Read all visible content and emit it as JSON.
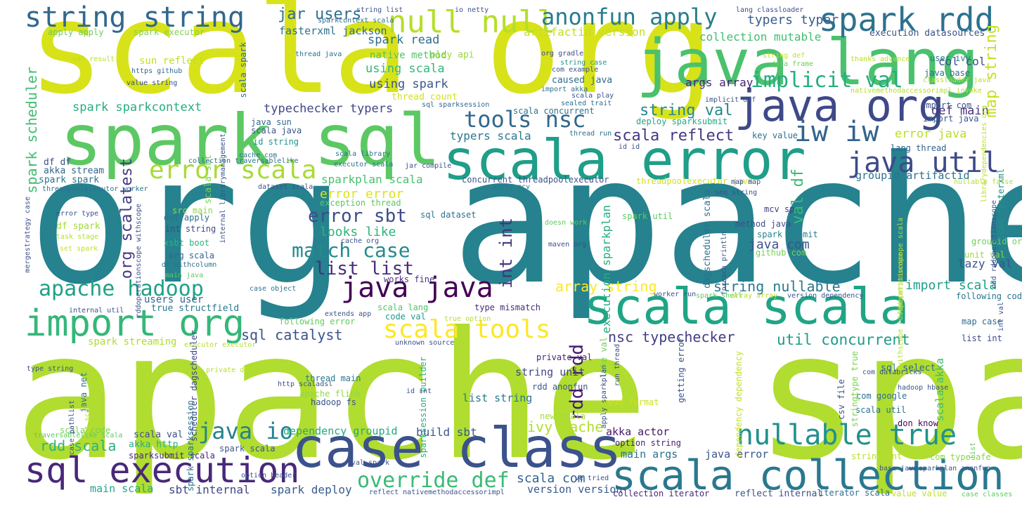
{
  "words": [
    {
      "text": "org apache",
      "color": "#25828e"
    },
    {
      "text": "apache spark",
      "color": "#b0dd2f"
    },
    {
      "text": "scala org",
      "color": "#d8e219"
    },
    {
      "text": "spark sql",
      "color": "#5cc863"
    },
    {
      "text": "java lang",
      "color": "#4ac16d"
    },
    {
      "text": "scala error",
      "color": "#1f9e89"
    },
    {
      "text": "case class",
      "color": "#3b528b"
    },
    {
      "text": "scala scala",
      "color": "#20a486"
    },
    {
      "text": "java org",
      "color": "#3e4989"
    },
    {
      "text": "scala collection",
      "color": "#2a788e"
    },
    {
      "text": "sql execution",
      "color": "#482878"
    },
    {
      "text": "import org",
      "color": "#35b779"
    },
    {
      "text": "string string",
      "color": "#31688e"
    },
    {
      "text": "spark rdd",
      "color": "#2c728e"
    },
    {
      "text": "null null",
      "color": "#b5de2b"
    },
    {
      "text": "anonfun apply",
      "color": "#287d8e"
    },
    {
      "text": "java util",
      "color": "#3e4a89"
    },
    {
      "text": "nullable true",
      "color": "#21918c"
    },
    {
      "text": "error scala",
      "color": "#a8db34"
    },
    {
      "text": "scala tools",
      "color": "#fde725"
    },
    {
      "text": "java java",
      "color": "#440154"
    },
    {
      "text": "tools nsc",
      "color": "#31688e"
    },
    {
      "text": "iw iw",
      "color": "#33638d"
    },
    {
      "text": "apache hadoop",
      "color": "#1fa187"
    },
    {
      "text": "override def",
      "color": "#3aba76"
    },
    {
      "text": "java io",
      "color": "#26828e"
    },
    {
      "text": "implicit val",
      "color": "#27ad81"
    },
    {
      "text": "match case",
      "color": "#238a8d"
    },
    {
      "text": "error sbt",
      "color": "#3e4c8a"
    },
    {
      "text": "list list",
      "color": "#472f7d"
    },
    {
      "text": "string val",
      "color": "#23898e"
    },
    {
      "text": "scala reflect",
      "color": "#443983"
    },
    {
      "text": "jar users",
      "color": "#2e6e8e"
    },
    {
      "text": "typers typer",
      "color": "#365d8d"
    },
    {
      "text": "artifactid version",
      "color": "#c2df23"
    },
    {
      "text": "collection mutable",
      "color": "#42be71"
    },
    {
      "text": "execution datasources",
      "color": "#3b528b"
    },
    {
      "text": "fasterxml jackson",
      "color": "#2d708e"
    },
    {
      "text": "spark read",
      "color": "#2e6e8e"
    },
    {
      "text": "native method",
      "color": "#52c569"
    },
    {
      "text": "using scala",
      "color": "#34b679"
    },
    {
      "text": "using spark",
      "color": "#39568c"
    },
    {
      "text": "spark sparkcontext",
      "color": "#26ad81"
    },
    {
      "text": "typechecker typers",
      "color": "#3f4788"
    },
    {
      "text": "typers scala",
      "color": "#2a778e"
    },
    {
      "text": "sparkplan scala",
      "color": "#48c16e"
    },
    {
      "text": "error error",
      "color": "#dde318"
    },
    {
      "text": "looks like",
      "color": "#2fb47c"
    },
    {
      "text": "array string",
      "color": "#fde725"
    },
    {
      "text": "string nullable",
      "color": "#2a788e"
    },
    {
      "text": "import scala",
      "color": "#1f9e89"
    },
    {
      "text": "util concurrent",
      "color": "#1e9b8a"
    },
    {
      "text": "nsc typechecker",
      "color": "#433e85"
    },
    {
      "text": "sql catalyst",
      "color": "#3b528b"
    },
    {
      "text": "spark streaming",
      "color": "#addc30"
    },
    {
      "text": "java com",
      "color": "#3a548c"
    },
    {
      "text": "col col",
      "color": "#3c4f8a"
    },
    {
      "text": "def main",
      "color": "#46327e"
    },
    {
      "text": "args array",
      "color": "#482374"
    },
    {
      "text": "error java",
      "color": "#bade28"
    },
    {
      "text": "groupid artifactid",
      "color": "#2c728e"
    },
    {
      "text": "map string",
      "color": "#c8e020"
    },
    {
      "text": "val df",
      "color": "#3aba76"
    },
    {
      "text": "int int",
      "color": "#46337f"
    },
    {
      "text": "rdd rdd",
      "color": "#481a6c"
    },
    {
      "text": "org scalatest",
      "color": "#443983"
    },
    {
      "text": "spark scheduler",
      "color": "#40bd72"
    },
    {
      "text": "ivy cache",
      "color": "#b0dd2f"
    },
    {
      "text": "build sbt",
      "color": "#38588c"
    },
    {
      "text": "dependency groupid",
      "color": "#22a884"
    },
    {
      "text": "rdd scala",
      "color": "#2eb37c"
    },
    {
      "text": "main scala",
      "color": "#21a685"
    },
    {
      "text": "sbt internal",
      "color": "#3f4788"
    },
    {
      "text": "spark deploy",
      "color": "#375a8c"
    },
    {
      "text": "scala com",
      "color": "#34618d"
    },
    {
      "text": "version version",
      "color": "#37598c"
    },
    {
      "text": "main args",
      "color": "#2c718e"
    },
    {
      "text": "java error",
      "color": "#3b528b"
    },
    {
      "text": "akka actor",
      "color": "#481769"
    },
    {
      "text": "list string",
      "color": "#2a788e"
    },
    {
      "text": "string unit",
      "color": "#404688"
    },
    {
      "text": "users user",
      "color": "#32648e"
    },
    {
      "text": "execution sparkplan",
      "color": "#27ad81"
    },
    {
      "text": "sql dataset",
      "color": "#2c738e"
    },
    {
      "text": "lazy val",
      "color": "#3b528b"
    },
    {
      "text": "scala akka",
      "color": "#3fbc73"
    },
    {
      "text": "mcv sp",
      "color": "#443b84"
    },
    {
      "text": "spark submit",
      "color": "#26828e"
    },
    {
      "text": "caused java",
      "color": "#2f6b8e"
    },
    {
      "text": "deploy sparksubmit",
      "color": "#22a785"
    },
    {
      "text": "key value",
      "color": "#2d708e"
    },
    {
      "text": "scala concurrent",
      "color": "#2b758e"
    },
    {
      "text": "thread count",
      "color": "#d2e21b"
    },
    {
      "text": "play api",
      "color": "#9bd93c"
    },
    {
      "text": "sun reflect",
      "color": "#c0df25"
    },
    {
      "text": "apply apply",
      "color": "#6ccd5a"
    },
    {
      "text": "spark executor",
      "color": "#7fd34e"
    },
    {
      "text": "scala spark",
      "color": "#2e6f8e"
    },
    {
      "text": "df df",
      "color": "#3d4d8a"
    },
    {
      "text": "akka stream",
      "color": "#32658e"
    },
    {
      "text": "spark spark",
      "color": "#2b748e"
    },
    {
      "text": "java sun",
      "color": "#31678e"
    },
    {
      "text": "scala java",
      "color": "#3a548c"
    },
    {
      "text": "id string",
      "color": "#1f958b"
    },
    {
      "text": "scala sbt",
      "color": "#7ad151"
    },
    {
      "text": "df spark",
      "color": "#a2da37"
    },
    {
      "text": "def apply",
      "color": "#2d718e"
    },
    {
      "text": "int string",
      "color": "#3e4a89"
    },
    {
      "text": "xsbt boot",
      "color": "#2eb37c"
    },
    {
      "text": "org scala",
      "color": "#33628d"
    },
    {
      "text": "src main",
      "color": "#8ed645"
    },
    {
      "text": "true structfield",
      "color": "#2a788e"
    },
    {
      "text": "scala code",
      "color": "#7ad151"
    },
    {
      "text": "scala val",
      "color": "#3d4e8a"
    },
    {
      "text": "akka http",
      "color": "#29af7f"
    },
    {
      "text": "spark scala",
      "color": "#3a538b"
    },
    {
      "text": "sparksubmit scala",
      "color": "#482677"
    },
    {
      "text": "thread main",
      "color": "#2a788e"
    },
    {
      "text": "apache flink",
      "color": "#90d743"
    },
    {
      "text": "hadoop fs",
      "color": "#3b528b"
    },
    {
      "text": "new scala",
      "color": "#a0da39"
    },
    {
      "text": "private val",
      "color": "#482576"
    },
    {
      "text": "rdd anonfun",
      "color": "#375b8d"
    },
    {
      "text": "read format",
      "color": "#cde11d"
    },
    {
      "text": "option string",
      "color": "#482173"
    },
    {
      "text": "collection iterator",
      "color": "#482979"
    },
    {
      "text": "reflect internal",
      "color": "#3b528b"
    },
    {
      "text": "iterator scala",
      "color": "#2f6c8e"
    },
    {
      "text": "value value",
      "color": "#c0df25"
    },
    {
      "text": "string int",
      "color": "#b8de29"
    },
    {
      "text": "com typesafe",
      "color": "#8bd646"
    },
    {
      "text": "scala util",
      "color": "#2c738e"
    },
    {
      "text": "don know",
      "color": "#440154"
    },
    {
      "text": "com google",
      "color": "#2d718e"
    },
    {
      "text": "sql select",
      "color": "#31688e"
    },
    {
      "text": "csv file",
      "color": "#3b528b"
    },
    {
      "text": "following code",
      "color": "#2a768e"
    },
    {
      "text": "list int",
      "color": "#3e4989"
    },
    {
      "text": "map case",
      "color": "#2f6b8e"
    },
    {
      "text": "unit val",
      "color": "#9dd93b"
    },
    {
      "text": "groupid org",
      "color": "#6ece58"
    },
    {
      "text": "com fasterxml",
      "color": "#21918c"
    },
    {
      "text": "github com",
      "color": "#77d153"
    },
    {
      "text": "method java",
      "color": "#3c508b"
    },
    {
      "text": "spark util",
      "color": "#5ec962"
    },
    {
      "text": "lang thread",
      "color": "#34608d"
    },
    {
      "text": "user ivy",
      "color": "#2c728e"
    },
    {
      "text": "java base",
      "color": "#2e6f8e"
    },
    {
      "text": "import com",
      "color": "#3b528b"
    },
    {
      "text": "import java",
      "color": "#38598c"
    },
    {
      "text": "works fine",
      "color": "#46337f"
    },
    {
      "text": "code val",
      "color": "#1f9a8a"
    },
    {
      "text": "type mismatch",
      "color": "#472d7b"
    },
    {
      "text": "scala lang",
      "color": "#52c569"
    },
    {
      "text": "following error",
      "color": "#63cb5f"
    },
    {
      "text": "sparksession builder",
      "color": "#2ab07f"
    },
    {
      "text": "concurrent threadpoolexecutor",
      "color": "#3b528b"
    },
    {
      "text": "threadpoolexecutor java",
      "color": "#d5e21a"
    },
    {
      "text": "exception thread",
      "color": "#5ac864"
    },
    {
      "text": "dagscheduler scala",
      "color": "#2d708e"
    },
    {
      "text": "dependency dependency",
      "color": "#c2df23"
    },
    {
      "text": "getting error",
      "color": "#3b528b"
    },
    {
      "text": "like val",
      "color": "#6ece58"
    },
    {
      "text": "stringtype true",
      "color": "#7ad151"
    },
    {
      "text": "scheduler dagscheduler",
      "color": "#3f4788"
    },
    {
      "text": "spark sparksession",
      "color": "#2c728e"
    },
    {
      "text": "java net",
      "color": "#2d708e"
    },
    {
      "text": "string list",
      "color": "#3b528b"
    },
    {
      "text": "sparkcontext scala",
      "color": "#2d708e"
    },
    {
      "text": "io netty",
      "color": "#3b528b"
    },
    {
      "text": "lang classloader",
      "color": "#3b528b"
    },
    {
      "text": "thread java",
      "color": "#2c728e"
    },
    {
      "text": "https github",
      "color": "#31688e"
    },
    {
      "text": "value string",
      "color": "#3b528b"
    },
    {
      "text": "val result",
      "color": "#b5de2b"
    },
    {
      "text": "org gradle",
      "color": "#3e4989"
    },
    {
      "text": "string case",
      "color": "#1f958b"
    },
    {
      "text": "com example",
      "color": "#3b528b"
    },
    {
      "text": "string def",
      "color": "#c2df23"
    },
    {
      "text": "data frame",
      "color": "#6ccd5a"
    },
    {
      "text": "thanks advance",
      "color": "#b8de29"
    },
    {
      "text": "classloader java",
      "color": "#b8de29"
    },
    {
      "text": "import akka",
      "color": "#2c728e"
    },
    {
      "text": "sealed trait",
      "color": "#2d708e"
    },
    {
      "text": "scala play",
      "color": "#3b528b"
    },
    {
      "text": "implicit def",
      "color": "#3b528b"
    },
    {
      "text": "sql sparksession",
      "color": "#31688e"
    },
    {
      "text": "nativemethodaccessorimpl invoke",
      "color": "#b5de2b"
    },
    {
      "text": "librarydependencies org",
      "color": "#b5de2b"
    },
    {
      "text": "thread run",
      "color": "#2c728e"
    },
    {
      "text": "id id",
      "color": "#3b528b"
    },
    {
      "text": "cache com",
      "color": "#2c728e"
    },
    {
      "text": "scala library",
      "color": "#2c728e"
    },
    {
      "text": "executor scala",
      "color": "#2c728e"
    },
    {
      "text": "jar compile",
      "color": "#3b528b"
    },
    {
      "text": "apply mcv",
      "color": "#2c728e"
    },
    {
      "text": "map map",
      "color": "#3b528b"
    },
    {
      "text": "nullable false",
      "color": "#b5de2b"
    },
    {
      "text": "seq string",
      "color": "#3b528b"
    },
    {
      "text": "collection traversablelike",
      "color": "#2c728e"
    },
    {
      "text": "threadpoolexecutor worker",
      "color": "#2c728e"
    },
    {
      "text": "dataset scala",
      "color": "#3b528b"
    },
    {
      "text": "internal librarymanagement",
      "color": "#3b528b"
    },
    {
      "text": "withscope rddoperationscope",
      "color": "#b5de2b"
    },
    {
      "text": "rddoperationscope withscope",
      "color": "#3b528b"
    },
    {
      "text": "error type",
      "color": "#3b528b"
    },
    {
      "text": "task stage",
      "color": "#b5de2b"
    },
    {
      "text": "set spark",
      "color": "#c2df23"
    },
    {
      "text": "df withcolumn",
      "color": "#2c728e"
    },
    {
      "text": "main java",
      "color": "#5ec962"
    },
    {
      "text": "mergestrategy case",
      "color": "#3b528b"
    },
    {
      "text": "case object",
      "color": "#2c728e"
    },
    {
      "text": "internal util",
      "color": "#3b528b"
    },
    {
      "text": "extends app",
      "color": "#3b528b"
    },
    {
      "text": "true option",
      "color": "#b5de2b"
    },
    {
      "text": "unknown source",
      "color": "#3b528b"
    },
    {
      "text": "executor executor",
      "color": "#b5de2b"
    },
    {
      "text": "private def",
      "color": "#b5de2b"
    },
    {
      "text": "http scaladsl",
      "color": "#3b528b"
    },
    {
      "text": "id int",
      "color": "#3b528b"
    },
    {
      "text": "val spark",
      "color": "#3b528b"
    },
    {
      "text": "option header",
      "color": "#3b528b"
    },
    {
      "text": "reflect nativemethodaccessorimpl",
      "color": "#3b528b"
    },
    {
      "text": "type string",
      "color": "#3b528b"
    },
    {
      "text": "traversablelike scala",
      "color": "#5ec962"
    },
    {
      "text": "case pathlist",
      "color": "#3b528b"
    },
    {
      "text": "list scala",
      "color": "#b5de2b"
    },
    {
      "text": "maven org",
      "color": "#3b528b"
    },
    {
      "text": "cache org",
      "color": "#3b528b"
    },
    {
      "text": "doesn work",
      "color": "#5ec962"
    },
    {
      "text": "worker run",
      "color": "#3b528b"
    },
    {
      "text": "spark shell",
      "color": "#5ec962"
    },
    {
      "text": "array array",
      "color": "#b5de2b"
    },
    {
      "text": "version dependency",
      "color": "#3b528b"
    },
    {
      "text": "foreach println",
      "color": "#3b528b"
    },
    {
      "text": "rdd rddoperationscope",
      "color": "#3b528b"
    },
    {
      "text": "rddoperationscope scala",
      "color": "#b5de2b"
    },
    {
      "text": "run thread",
      "color": "#3b528b"
    },
    {
      "text": "apply sparkplan",
      "color": "#3b528b"
    },
    {
      "text": "ve tried",
      "color": "#3b528b"
    },
    {
      "text": "com databricks",
      "color": "#3b528b"
    },
    {
      "text": "hadoop hbase",
      "color": "#3b528b"
    },
    {
      "text": "base java",
      "color": "#3b528b"
    },
    {
      "text": "sparkplan anonfun",
      "color": "#3b528b"
    },
    {
      "text": "case classes",
      "color": "#5ec962"
    },
    {
      "text": "int val",
      "color": "#3b528b"
    },
    {
      "text": "list",
      "color": "#5ec962"
    }
  ]
}
